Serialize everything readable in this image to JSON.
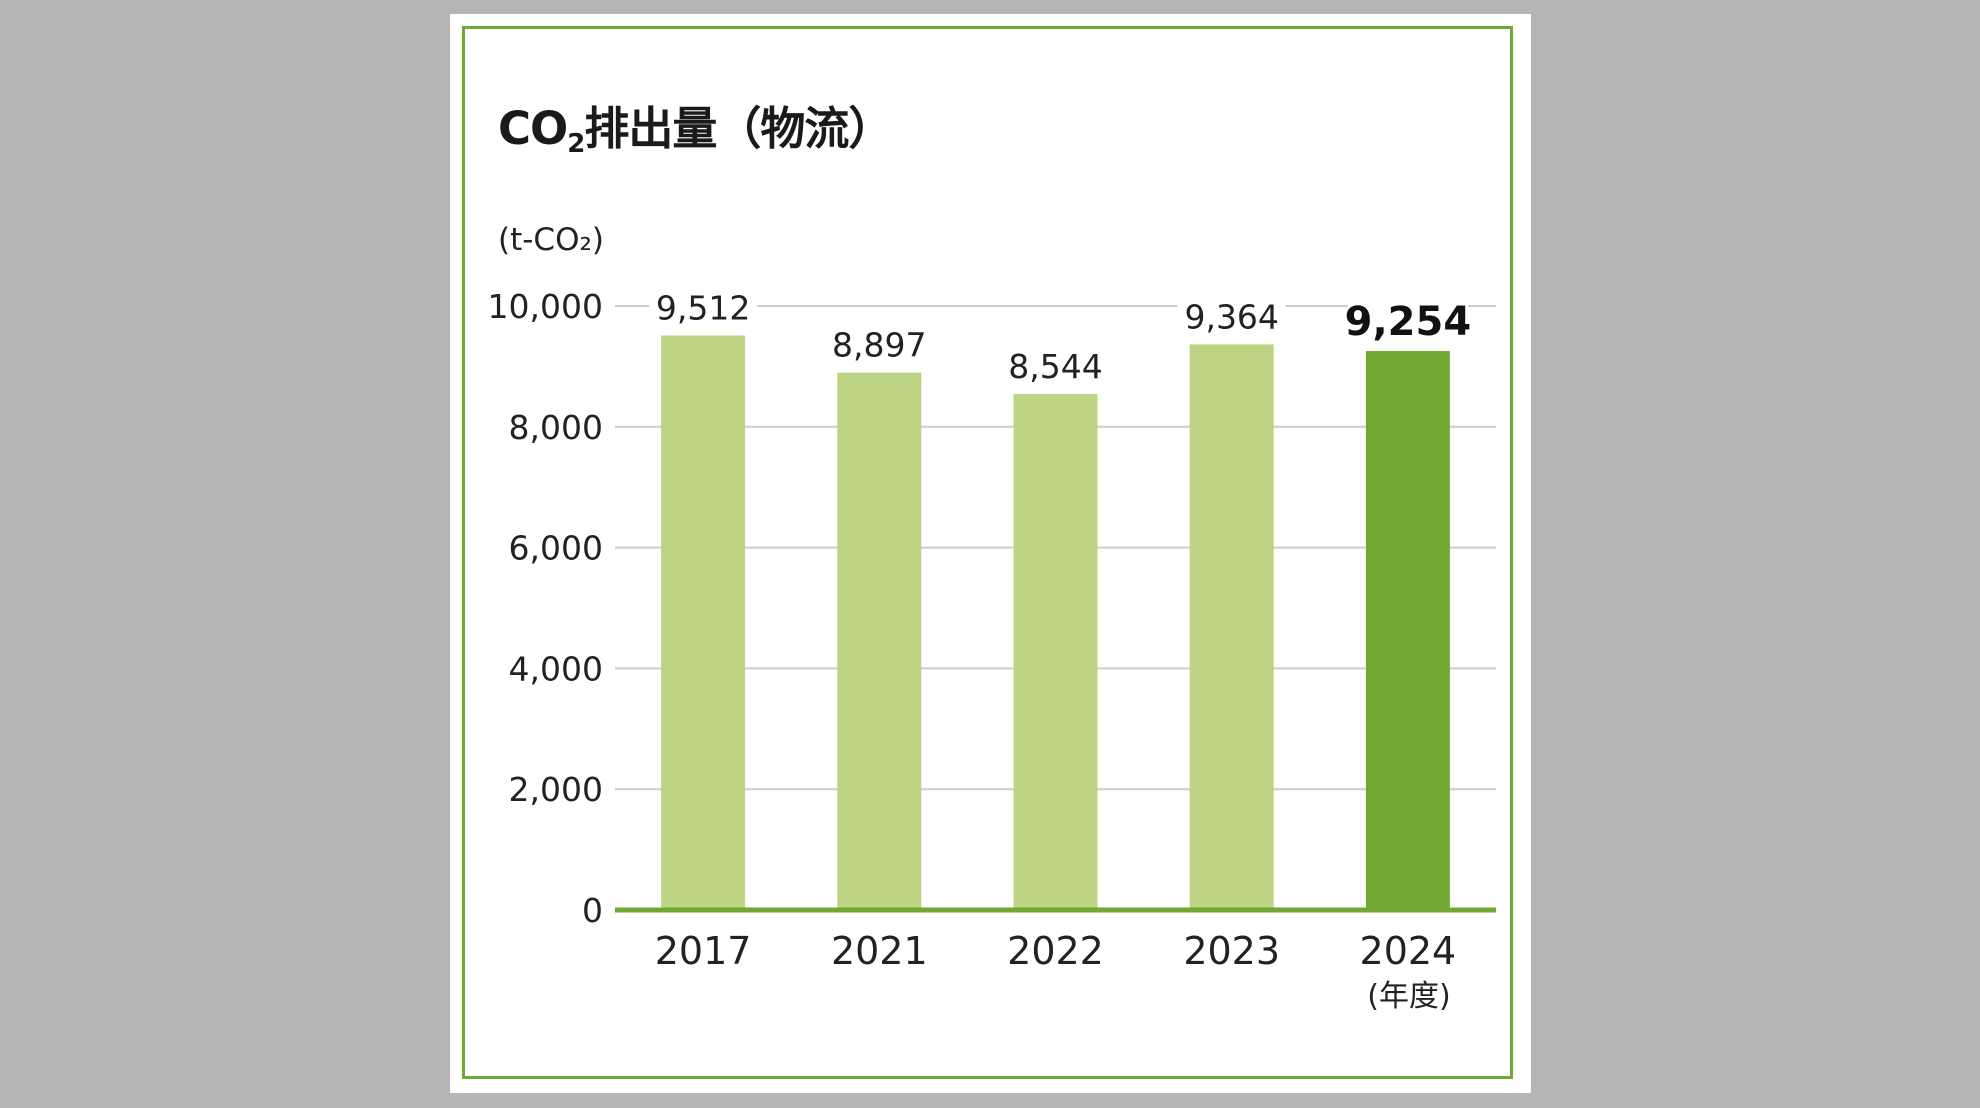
{
  "title": {
    "main": "CO",
    "sub": "2",
    "rest": "排出量（物流）"
  },
  "chart_data": {
    "type": "bar",
    "title": "CO₂排出量（物流）",
    "ylabel": "(t-CO₂)",
    "xlabel": "(年度)",
    "categories": [
      "2017",
      "2021",
      "2022",
      "2023",
      "2024"
    ],
    "values": [
      9512,
      8897,
      8544,
      9364,
      9254
    ],
    "value_labels": [
      "9,512",
      "8,897",
      "8,544",
      "9,364",
      "9,254"
    ],
    "yticks": [
      "0",
      "2,000",
      "4,000",
      "6,000",
      "8,000",
      "10,000"
    ],
    "ylim": [
      0,
      10000
    ],
    "highlight_index": 4,
    "grid": true,
    "colors": {
      "bar": "#bcd483",
      "highlight": "#6fa933",
      "frame": "#6fa933",
      "grid": "#cccccc",
      "axis": "#6fa933"
    }
  }
}
